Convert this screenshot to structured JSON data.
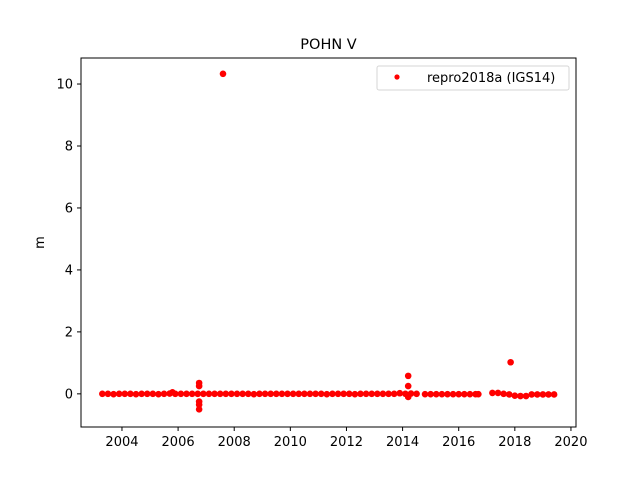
{
  "chart_data": {
    "type": "scatter",
    "title": "POHN V",
    "xlabel": "",
    "ylabel": "m",
    "xlim": [
      2002.54,
      2020.18
    ],
    "ylim": [
      -1.07,
      10.84
    ],
    "xticks": [
      2004,
      2006,
      2008,
      2010,
      2012,
      2014,
      2016,
      2018,
      2020
    ],
    "yticks": [
      0,
      2,
      4,
      6,
      8,
      10
    ],
    "grid": false,
    "legend_position": "top-right",
    "series": [
      {
        "name": "repro2018a (IGS14)",
        "color": "#ff0000",
        "marker": "circle",
        "x": [
          2003.3,
          2003.5,
          2003.7,
          2003.9,
          2004.1,
          2004.3,
          2004.5,
          2004.7,
          2004.9,
          2005.1,
          2005.3,
          2005.5,
          2005.7,
          2005.8,
          2005.9,
          2006.1,
          2006.3,
          2006.5,
          2006.7,
          2006.75,
          2006.75,
          2006.75,
          2006.75,
          2006.75,
          2006.9,
          2007.1,
          2007.3,
          2007.5,
          2007.6,
          2007.7,
          2007.9,
          2008.1,
          2008.3,
          2008.5,
          2008.7,
          2008.9,
          2009.1,
          2009.3,
          2009.5,
          2009.7,
          2009.9,
          2010.1,
          2010.3,
          2010.5,
          2010.7,
          2010.9,
          2011.1,
          2011.3,
          2011.5,
          2011.7,
          2011.9,
          2012.1,
          2012.3,
          2012.5,
          2012.7,
          2012.9,
          2013.1,
          2013.3,
          2013.5,
          2013.7,
          2013.9,
          2014.1,
          2014.2,
          2014.2,
          2014.2,
          2014.3,
          2014.5,
          2014.8,
          2015.0,
          2015.2,
          2015.4,
          2015.6,
          2015.8,
          2016.0,
          2016.2,
          2016.4,
          2016.6,
          2016.7,
          2017.2,
          2017.4,
          2017.6,
          2017.8,
          2017.85,
          2018.0,
          2018.2,
          2018.4,
          2018.6,
          2018.8,
          2019.0,
          2019.2,
          2019.4
        ],
        "y": [
          0.0,
          0.0,
          -0.01,
          0.0,
          0.0,
          0.0,
          -0.01,
          0.0,
          0.0,
          0.0,
          -0.01,
          0.0,
          0.01,
          0.05,
          0.0,
          0.0,
          0.0,
          0.0,
          0.0,
          0.35,
          0.25,
          -0.25,
          -0.35,
          -0.5,
          0.0,
          0.0,
          0.0,
          0.0,
          10.33,
          0.0,
          0.0,
          0.0,
          0.0,
          0.0,
          -0.01,
          0.0,
          0.0,
          0.0,
          0.0,
          0.0,
          0.0,
          0.0,
          0.0,
          0.0,
          0.0,
          0.0,
          0.0,
          -0.01,
          0.0,
          0.0,
          0.0,
          0.0,
          -0.01,
          0.0,
          0.0,
          0.0,
          0.0,
          0.0,
          0.0,
          0.0,
          0.02,
          0.0,
          0.58,
          0.25,
          -0.1,
          0.01,
          0.0,
          -0.01,
          -0.01,
          -0.01,
          -0.01,
          -0.01,
          -0.01,
          -0.01,
          -0.01,
          -0.01,
          -0.01,
          -0.01,
          0.03,
          0.03,
          0.0,
          -0.02,
          1.02,
          -0.06,
          -0.07,
          -0.07,
          -0.02,
          -0.02,
          -0.02,
          -0.02,
          -0.02
        ]
      }
    ]
  }
}
